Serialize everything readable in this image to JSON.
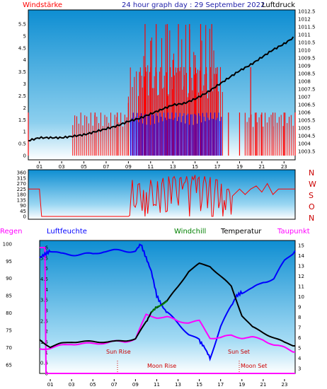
{
  "header": {
    "left_label": "Windstärke",
    "title": "24 hour graph day : 29 September 2022",
    "right_label": "Luftdruck"
  },
  "panel_wind": {
    "left_ticks": [
      "5.5",
      "5",
      "4.5",
      "4",
      "3.5",
      "3",
      "2.5",
      "2",
      "1.5",
      "1",
      "0.5",
      "0"
    ],
    "right_ticks": [
      "1012.5",
      "1012",
      "1011.5",
      "1011",
      "1010.5",
      "1010",
      "1009.5",
      "1009",
      "1008.5",
      "1008",
      "1007.5",
      "1007",
      "1006.5",
      "1006",
      "1005.5",
      "1005",
      "1004.5",
      "1004",
      "1003.5"
    ],
    "x_ticks": [
      "01",
      "03",
      "05",
      "07",
      "09",
      "11",
      "13",
      "15",
      "17",
      "19",
      "21",
      "23"
    ]
  },
  "panel_dir": {
    "left_ticks": [
      "360",
      "315",
      "270",
      "225",
      "180",
      "135",
      "90",
      "45",
      "0"
    ],
    "right_labels": [
      "N",
      "W",
      "S",
      "O",
      "N"
    ]
  },
  "panel_temp": {
    "header": {
      "regen": "Regen",
      "luftfeuchte": "Luftfeuchte",
      "windchill": "Windchill",
      "temperatur": "Temperatur",
      "taupunkt": "Taupunkt"
    },
    "regen_ticks": [
      "6",
      "5.5",
      "5",
      "4.5",
      "4",
      "3.5",
      "3",
      "2.5",
      "2",
      "1.5",
      "1",
      "0.5",
      "0"
    ],
    "hum_ticks": [
      "100",
      "95",
      "90",
      "85",
      "80",
      "75",
      "70",
      "65"
    ],
    "temp_ticks": [
      "15",
      "14",
      "13",
      "12",
      "11",
      "10",
      "9",
      "8",
      "7",
      "6",
      "5",
      "4",
      "3"
    ],
    "annotations": {
      "sun_rise": "Sun Rise",
      "moon_rise": "Moon Rise",
      "sun_set": "Sun Set",
      "moon_set": "Moon Set"
    },
    "x_ticks": [
      "01",
      "03",
      "05",
      "07",
      "09",
      "11",
      "13",
      "15",
      "17",
      "19",
      "21",
      "23"
    ]
  },
  "colors": {
    "wind": "#ff0000",
    "gust": "#0000ff",
    "pressure": "#000000",
    "humidity": "#0000ff",
    "temperature": "#000000",
    "dewpoint": "#ff00ff",
    "windchill": "#008000",
    "bg_top": "#0e8ed2",
    "bg_bottom": "#ffffff"
  },
  "chart_data": [
    {
      "type": "line",
      "title": "24 hour graph day : 29 September 2022",
      "xlabel": "",
      "x_range_hours": [
        0,
        24
      ],
      "series": [
        {
          "name": "Windstärke",
          "axis": "left",
          "ylim": [
            0,
            5.5
          ],
          "x": [
            0,
            6,
            8,
            9,
            10,
            10.5,
            11,
            11.5,
            12,
            12.5,
            13,
            13.5,
            14,
            14.5,
            15,
            15.5,
            16,
            16.5,
            17,
            18,
            19,
            20,
            20.5,
            21,
            22,
            23,
            24
          ],
          "y": [
            1.8,
            1.8,
            1.8,
            2.2,
            3.5,
            5.5,
            4.8,
            5.5,
            3.7,
            5.5,
            4.0,
            5.5,
            3.7,
            5.5,
            4.2,
            5.5,
            3.7,
            5.5,
            3.7,
            1.8,
            1.8,
            3.7,
            1.8,
            1.8,
            1.8,
            1.8,
            1.8
          ]
        },
        {
          "name": "Luftdruck",
          "axis": "right",
          "ylim": [
            1003.3,
            1012.7
          ],
          "x": [
            0,
            1,
            2,
            3,
            4,
            5,
            6,
            7,
            8,
            9,
            10,
            11,
            12,
            13,
            14,
            15,
            16,
            17,
            18,
            19,
            20,
            21,
            22,
            23,
            24
          ],
          "y": [
            1004.3,
            1004.5,
            1004.5,
            1004.5,
            1004.6,
            1004.7,
            1004.9,
            1005.1,
            1005.3,
            1005.6,
            1005.8,
            1006.1,
            1006.4,
            1006.7,
            1006.8,
            1007.1,
            1007.5,
            1008.0,
            1008.5,
            1009.0,
            1009.4,
            1009.9,
            1010.4,
            1010.8,
            1011.3
          ]
        }
      ],
      "ylabel_left": "Windstärke",
      "ylabel_right": "Luftdruck",
      "grid": false
    },
    {
      "type": "line",
      "title": "",
      "ylim": [
        0,
        360
      ],
      "series": [
        {
          "name": "Windrichtung",
          "x": [
            0,
            1,
            1.2,
            5,
            9,
            9.5,
            10,
            10.5,
            11,
            11.5,
            12,
            12.5,
            13,
            13.5,
            14,
            14.5,
            15,
            15.5,
            16,
            16.5,
            17,
            17.5,
            18,
            19,
            19.5,
            20,
            20.5,
            21,
            21.5,
            22,
            22.5,
            23,
            23.5,
            24
          ],
          "y": [
            225,
            225,
            0,
            0,
            0,
            90,
            270,
            0,
            300,
            90,
            270,
            45,
            315,
            90,
            270,
            0,
            340,
            45,
            270,
            0,
            300,
            0,
            225,
            225,
            180,
            225,
            250,
            200,
            270,
            180,
            225,
            225,
            225,
            225
          ]
        }
      ]
    },
    {
      "type": "line",
      "title": "",
      "series": [
        {
          "name": "Luftfeuchte",
          "axis": "left",
          "ylim": [
            62.5,
            101
          ],
          "x": [
            0,
            0.5,
            1,
            2,
            3,
            4,
            5,
            6,
            7,
            8,
            9,
            9.5,
            10,
            10.5,
            11,
            11.5,
            12,
            13,
            14,
            15,
            15.5,
            16,
            17,
            18,
            18.5,
            19,
            20,
            21,
            22,
            23,
            24
          ],
          "y": [
            96,
            97,
            98,
            97,
            97,
            97,
            97,
            98,
            98,
            98,
            98,
            100,
            96,
            92,
            85,
            82,
            80,
            77,
            74,
            72,
            70,
            67,
            76,
            82,
            85,
            86,
            87,
            89,
            90,
            95,
            98
          ]
        },
        {
          "name": "Temperatur",
          "axis": "right",
          "ylim": [
            2.5,
            15.5
          ],
          "x": [
            0,
            1,
            2,
            3,
            4,
            5,
            6,
            7,
            8,
            9,
            10,
            10.5,
            11,
            12,
            13,
            14,
            15,
            16,
            17,
            18,
            19,
            20,
            21,
            22,
            23,
            24
          ],
          "y": [
            5.8,
            5.1,
            5.4,
            5.6,
            5.6,
            5.6,
            5.6,
            5.6,
            5.7,
            5.9,
            7.5,
            8.5,
            9.0,
            9.6,
            11.0,
            12.5,
            13.2,
            13.0,
            12.0,
            11.0,
            8.2,
            7.0,
            6.5,
            6.0,
            5.5,
            5.2
          ]
        },
        {
          "name": "Taupunkt",
          "axis": "right",
          "ylim": [
            2.5,
            15.5
          ],
          "x": [
            0,
            1,
            2,
            3,
            4,
            5,
            6,
            7,
            8,
            9,
            10,
            11,
            12,
            13,
            14,
            15,
            16,
            17,
            18,
            19,
            20,
            21,
            22,
            23,
            24
          ],
          "y": [
            4.9,
            5.0,
            5.2,
            5.4,
            5.4,
            5.4,
            5.5,
            5.6,
            5.6,
            5.9,
            8.2,
            8.0,
            8.0,
            7.6,
            7.5,
            7.6,
            6.0,
            6.0,
            6.2,
            6.0,
            6.0,
            5.8,
            5.3,
            5.0,
            4.6
          ]
        },
        {
          "name": "Windchill",
          "axis": "right",
          "ylim": [
            2.5,
            15.5
          ],
          "x": [
            10.5,
            11,
            11.5,
            12
          ],
          "y": [
            8.5,
            9.0,
            9.2,
            9.6
          ]
        },
        {
          "name": "Regen",
          "axis": "left2",
          "ylim": [
            0,
            6.3
          ],
          "x": [
            0,
            0.5,
            0.6,
            24
          ],
          "y": [
            6.3,
            6.3,
            0,
            0
          ]
        }
      ],
      "annotations": [
        {
          "label": "Sun Rise",
          "x": 7.2
        },
        {
          "label": "Moon Rise",
          "x": 11.2
        },
        {
          "label": "Sun Set",
          "x": 18.6
        },
        {
          "label": "Moon Set",
          "x": 19.2
        }
      ]
    }
  ]
}
